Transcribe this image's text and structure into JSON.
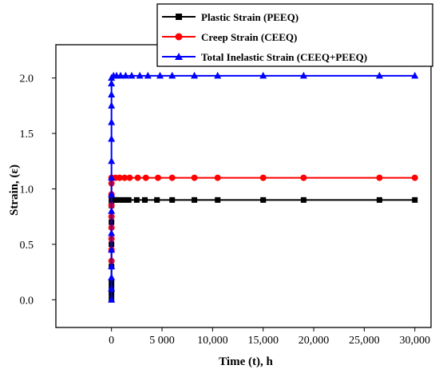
{
  "chart_data": {
    "type": "line",
    "xlabel": "Time (t), h",
    "ylabel": "Strain, (ε)",
    "xlim": [
      -5500,
      31600
    ],
    "ylim": [
      -0.25,
      2.3
    ],
    "xticks": [
      0,
      5000,
      10000,
      15000,
      20000,
      25000,
      30000
    ],
    "xtick_labels": [
      "0",
      "5 000",
      "10,000",
      "15,000",
      "20,000",
      "25,000",
      "30,000"
    ],
    "yticks": [
      0.0,
      0.5,
      1.0,
      1.5,
      2.0
    ],
    "ytick_labels": [
      "0.0",
      "0.5",
      "1.0",
      "1.5",
      "2.0"
    ],
    "legend_position": "top-right",
    "series": [
      {
        "name": "Plastic Strain (PEEQ)",
        "color": "#000000",
        "marker": "square",
        "points": [
          [
            0,
            0.0
          ],
          [
            0,
            0.05
          ],
          [
            0,
            0.1
          ],
          [
            0,
            0.15
          ],
          [
            0,
            0.3
          ],
          [
            0,
            0.5
          ],
          [
            0,
            0.7
          ],
          [
            0,
            0.85
          ],
          [
            0,
            0.9
          ],
          [
            300,
            0.9
          ],
          [
            700,
            0.9
          ],
          [
            1200,
            0.9
          ],
          [
            1700,
            0.9
          ],
          [
            2500,
            0.9
          ],
          [
            3300,
            0.9
          ],
          [
            4500,
            0.9
          ],
          [
            6000,
            0.9
          ],
          [
            8200,
            0.9
          ],
          [
            10500,
            0.9
          ],
          [
            15000,
            0.9
          ],
          [
            19000,
            0.9
          ],
          [
            26500,
            0.9
          ],
          [
            30000,
            0.9
          ]
        ]
      },
      {
        "name": "Creep Strain (CEEQ)",
        "color": "#ff0000",
        "marker": "circle",
        "points": [
          [
            0,
            0.35
          ],
          [
            0,
            0.45
          ],
          [
            0,
            0.55
          ],
          [
            0,
            0.65
          ],
          [
            0,
            0.75
          ],
          [
            0,
            0.85
          ],
          [
            0,
            0.95
          ],
          [
            0,
            1.05
          ],
          [
            0,
            1.1
          ],
          [
            400,
            1.1
          ],
          [
            800,
            1.1
          ],
          [
            1300,
            1.1
          ],
          [
            1800,
            1.1
          ],
          [
            2600,
            1.1
          ],
          [
            3400,
            1.1
          ],
          [
            4600,
            1.1
          ],
          [
            6000,
            1.1
          ],
          [
            8200,
            1.1
          ],
          [
            10500,
            1.1
          ],
          [
            15000,
            1.1
          ],
          [
            19000,
            1.1
          ],
          [
            26500,
            1.1
          ],
          [
            30000,
            1.1
          ]
        ]
      },
      {
        "name": "Total Inelastic Strain (CEEQ+PEEQ)",
        "color": "#0000ff",
        "marker": "triangle",
        "points": [
          [
            0,
            0.0
          ],
          [
            0,
            0.1
          ],
          [
            0,
            0.2
          ],
          [
            0,
            0.3
          ],
          [
            0,
            0.45
          ],
          [
            0,
            0.6
          ],
          [
            0,
            0.8
          ],
          [
            0,
            0.95
          ],
          [
            0,
            1.1
          ],
          [
            0,
            1.25
          ],
          [
            0,
            1.45
          ],
          [
            0,
            1.6
          ],
          [
            0,
            1.75
          ],
          [
            0,
            1.85
          ],
          [
            0,
            1.95
          ],
          [
            0,
            2.0
          ],
          [
            200,
            2.02
          ],
          [
            500,
            2.02
          ],
          [
            900,
            2.02
          ],
          [
            1400,
            2.02
          ],
          [
            2000,
            2.02
          ],
          [
            2800,
            2.02
          ],
          [
            3600,
            2.02
          ],
          [
            4800,
            2.02
          ],
          [
            6000,
            2.02
          ],
          [
            8200,
            2.02
          ],
          [
            10500,
            2.02
          ],
          [
            15000,
            2.02
          ],
          [
            19000,
            2.02
          ],
          [
            26500,
            2.02
          ],
          [
            30000,
            2.02
          ]
        ]
      }
    ]
  }
}
